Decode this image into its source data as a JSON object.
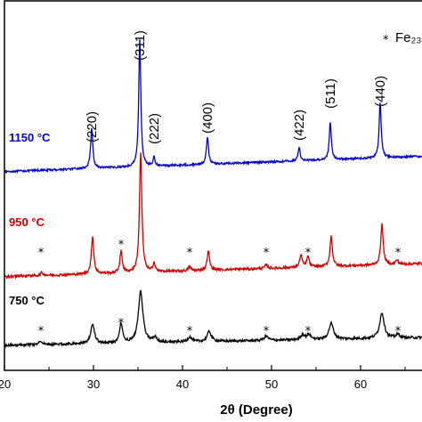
{
  "chart_data": {
    "type": "line",
    "xlabel": "2θ (Degree)",
    "xlim": [
      20,
      67
    ],
    "x_ticks": [
      "20",
      "30",
      "40",
      "50",
      "60"
    ],
    "legend": {
      "marker": "*",
      "text": "Fe₂₃..."
    },
    "series": [
      {
        "name": "1150 °C",
        "color": "#0000cc",
        "baseline_start": 0.23,
        "baseline_end": 0.66,
        "noise": 0.028,
        "peaks": [
          {
            "x": 29.8,
            "height": 1.15,
            "width": 0.14
          },
          {
            "x": 35.2,
            "height": 3.55,
            "width": 0.14
          },
          {
            "x": 36.8,
            "height": 0.25,
            "width": 0.12
          },
          {
            "x": 42.8,
            "height": 0.78,
            "width": 0.14
          },
          {
            "x": 53.1,
            "height": 0.38,
            "width": 0.14
          },
          {
            "x": 56.6,
            "height": 1.05,
            "width": 0.14
          },
          {
            "x": 62.2,
            "height": 1.55,
            "width": 0.14
          }
        ]
      },
      {
        "name": "950 °C",
        "color": "#cc0000",
        "baseline_start": 0.03,
        "baseline_end": 0.4,
        "noise": 0.035,
        "peaks": [
          {
            "x": 24.2,
            "height": 0.08,
            "width": 0.2
          },
          {
            "x": 29.9,
            "height": 1.05,
            "width": 0.16
          },
          {
            "x": 33.1,
            "height": 0.6,
            "width": 0.16
          },
          {
            "x": 35.3,
            "height": 3.35,
            "width": 0.16
          },
          {
            "x": 36.8,
            "height": 0.25,
            "width": 0.14
          },
          {
            "x": 40.8,
            "height": 0.12,
            "width": 0.16
          },
          {
            "x": 42.9,
            "height": 0.55,
            "width": 0.16
          },
          {
            "x": 49.4,
            "height": 0.1,
            "width": 0.18
          },
          {
            "x": 53.3,
            "height": 0.35,
            "width": 0.16
          },
          {
            "x": 54.1,
            "height": 0.3,
            "width": 0.16
          },
          {
            "x": 56.7,
            "height": 0.85,
            "width": 0.16
          },
          {
            "x": 62.4,
            "height": 1.15,
            "width": 0.16
          },
          {
            "x": 64.1,
            "height": 0.12,
            "width": 0.16
          }
        ]
      },
      {
        "name": "750 °C",
        "color": "#000000",
        "baseline_start": 0.0,
        "baseline_end": 0.22,
        "noise": 0.035,
        "peaks": [
          {
            "x": 24.1,
            "height": 0.1,
            "width": 0.25
          },
          {
            "x": 29.9,
            "height": 0.55,
            "width": 0.25
          },
          {
            "x": 33.1,
            "height": 0.55,
            "width": 0.2
          },
          {
            "x": 35.3,
            "height": 1.45,
            "width": 0.3
          },
          {
            "x": 36.9,
            "height": 0.15,
            "width": 0.22
          },
          {
            "x": 40.8,
            "height": 0.14,
            "width": 0.25
          },
          {
            "x": 43.0,
            "height": 0.28,
            "width": 0.28
          },
          {
            "x": 49.4,
            "height": 0.12,
            "width": 0.28
          },
          {
            "x": 53.5,
            "height": 0.14,
            "width": 0.28
          },
          {
            "x": 54.2,
            "height": 0.14,
            "width": 0.25
          },
          {
            "x": 56.7,
            "height": 0.45,
            "width": 0.3
          },
          {
            "x": 62.4,
            "height": 0.72,
            "width": 0.3
          },
          {
            "x": 64.2,
            "height": 0.1,
            "width": 0.25
          }
        ]
      }
    ],
    "peak_labels": [
      {
        "text": "(220)",
        "x": 29.8
      },
      {
        "text": "(311)",
        "x": 35.2
      },
      {
        "text": "(222)",
        "x": 36.8
      },
      {
        "text": "(400)",
        "x": 42.8
      },
      {
        "text": "(422)",
        "x": 53.1
      },
      {
        "text": "(511)",
        "x": 56.6
      },
      {
        "text": "(440)",
        "x": 62.2
      }
    ],
    "impurity_markers": {
      "symbol": "*",
      "x": [
        24.1,
        33.1,
        40.8,
        49.4,
        54.1,
        64.2
      ]
    }
  }
}
